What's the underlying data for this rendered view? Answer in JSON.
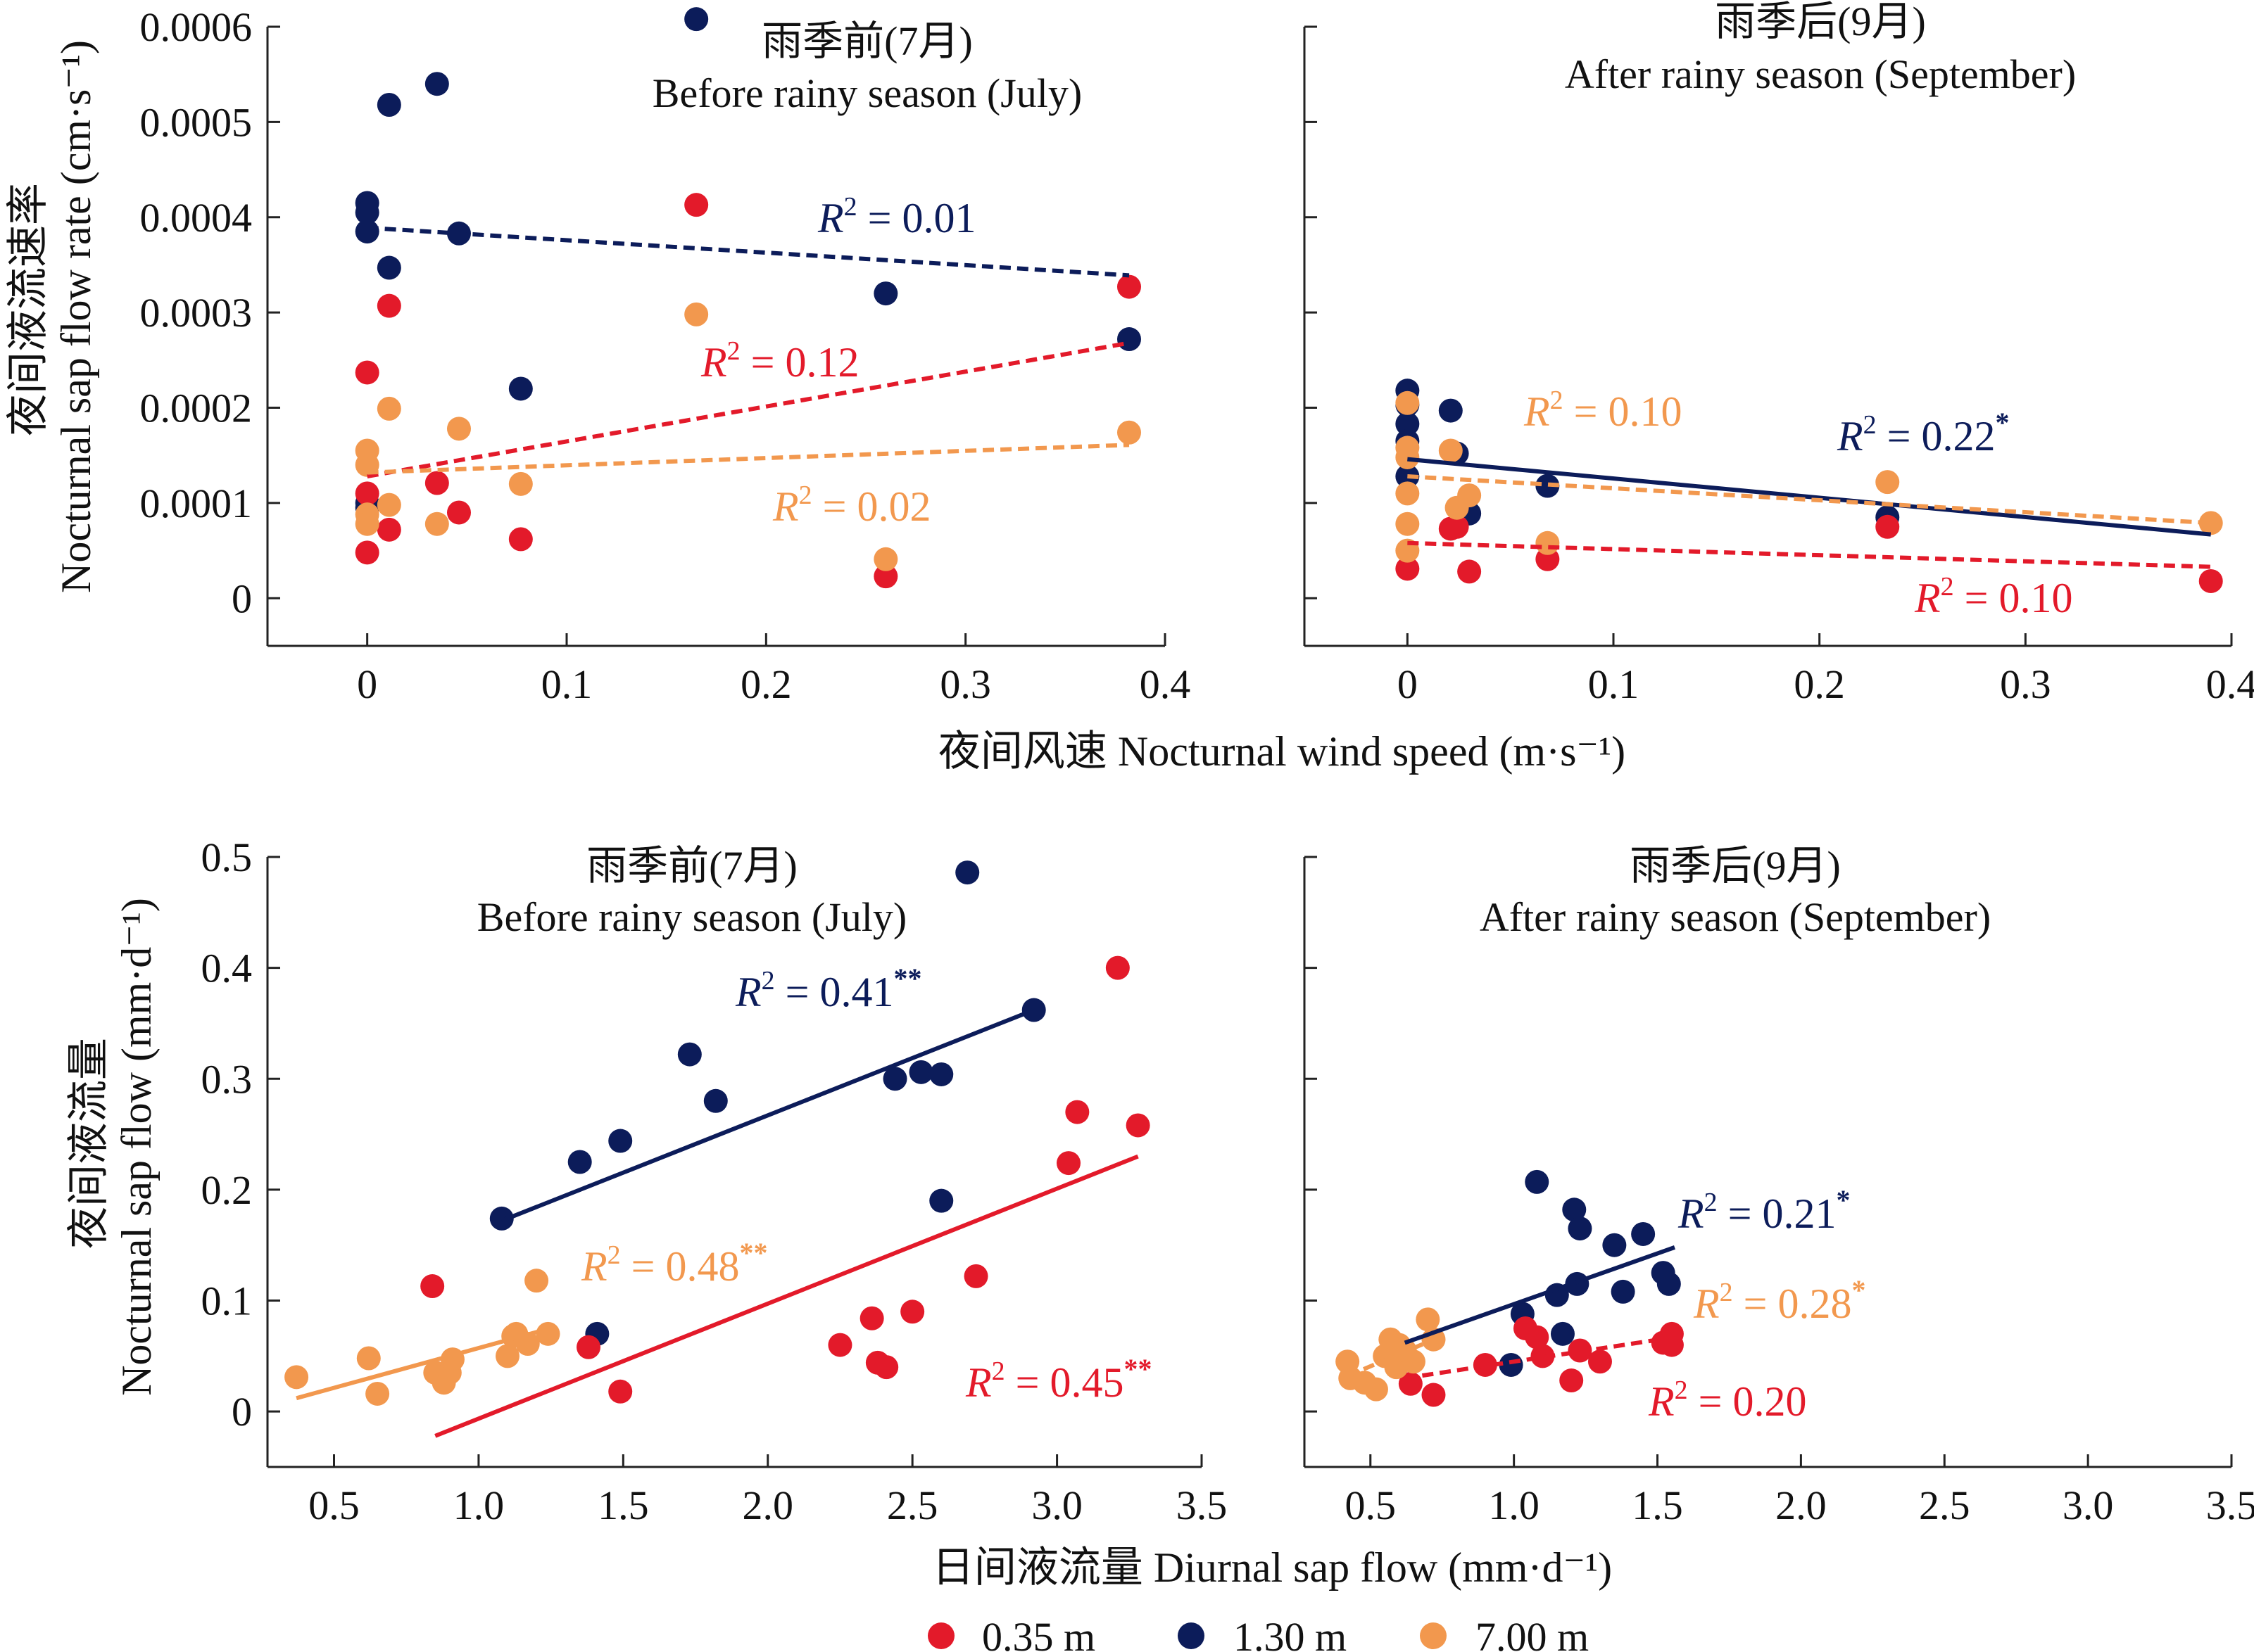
{
  "colors": {
    "0.35m": "#e31a2a",
    "1.30m": "#0c1c5a",
    "7.00m": "#f2984e",
    "axis": "#222222"
  },
  "legend": [
    {
      "key": "0.35m",
      "label": "0.35 m"
    },
    {
      "key": "1.30m",
      "label": "1.30 m"
    },
    {
      "key": "7.00m",
      "label": "7.00 m"
    }
  ],
  "top_row": {
    "ylabel_cn": "夜间液流速率",
    "ylabel_en": "Nocturnal sap flow rate (cm·s⁻¹)",
    "xlabel": "夜间风速 Nocturnal wind speed (m·s⁻¹)"
  },
  "bottom_row": {
    "ylabel_cn": "夜间液流量",
    "ylabel_en": "Nocturnal sap flow (mm·d⁻¹)",
    "xlabel": "日间液流量 Diurnal sap flow (mm·d⁻¹)"
  },
  "chart_data": [
    {
      "type": "scatter",
      "id": "top-left",
      "title_cn": "雨季前(7月)",
      "title_en": "Before rainy season (July)",
      "xlim": [
        -0.05,
        0.4
      ],
      "ylim": [
        -5e-05,
        0.0006
      ],
      "xticks": [
        0,
        0.1,
        0.2,
        0.3,
        0.4
      ],
      "xtick_labels": [
        "0",
        "0.1",
        "0.2",
        "0.3",
        "0.4"
      ],
      "yticks": [
        0,
        0.0001,
        0.0002,
        0.0003,
        0.0004,
        0.0005,
        0.0006
      ],
      "ytick_labels": [
        "0",
        "0.0001",
        "0.0002",
        "0.0003",
        "0.0004",
        "0.0005",
        "0.0006"
      ],
      "show_ytick_labels": true,
      "series": [
        {
          "key": "1.30m",
          "points": [
            [
              0,
              0.000415
            ],
            [
              0,
              0.000405
            ],
            [
              0,
              0.000385
            ],
            [
              0,
              0.0001
            ],
            [
              0,
              9.5e-05
            ],
            [
              0.011,
              0.000518
            ],
            [
              0.011,
              0.000347
            ],
            [
              0.035,
              0.00054
            ],
            [
              0.046,
              0.000383
            ],
            [
              0.077,
              0.00022
            ],
            [
              0.165,
              0.000608
            ],
            [
              0.26,
              0.00032
            ],
            [
              0.382,
              0.000272
            ]
          ],
          "fit": {
            "x": [
              0,
              0.382
            ],
            "y": [
              0.000389,
              0.000339
            ],
            "style": "dashed",
            "r2": "0.01",
            "stars": ""
          }
        },
        {
          "key": "0.35m",
          "points": [
            [
              0,
              0.000237
            ],
            [
              0,
              0.00011
            ],
            [
              0,
              4.8e-05
            ],
            [
              0.011,
              0.000307
            ],
            [
              0.011,
              7.2e-05
            ],
            [
              0.035,
              0.000121
            ],
            [
              0.046,
              9e-05
            ],
            [
              0.077,
              6.2e-05
            ],
            [
              0.165,
              0.000413
            ],
            [
              0.26,
              2.3e-05
            ],
            [
              0.382,
              0.000327
            ]
          ],
          "fit": {
            "x": [
              0,
              0.382
            ],
            "y": [
              0.000128,
              0.000268
            ],
            "style": "dashed",
            "r2": "0.12",
            "stars": ""
          }
        },
        {
          "key": "7.00m",
          "points": [
            [
              0,
              0.000155
            ],
            [
              0,
              0.00014
            ],
            [
              0,
              8.8e-05
            ],
            [
              0,
              7.8e-05
            ],
            [
              0.011,
              0.000199
            ],
            [
              0.011,
              9.8e-05
            ],
            [
              0.035,
              7.8e-05
            ],
            [
              0.046,
              0.000178
            ],
            [
              0.077,
              0.00012
            ],
            [
              0.165,
              0.000298
            ],
            [
              0.26,
              4.1e-05
            ],
            [
              0.382,
              0.000174
            ]
          ],
          "fit": {
            "x": [
              0,
              0.382
            ],
            "y": [
              0.000132,
              0.000161
            ],
            "style": "dashed",
            "r2": "0.02",
            "stars": ""
          }
        }
      ]
    },
    {
      "type": "scatter",
      "id": "top-right",
      "title_cn": "雨季后(9月)",
      "title_en": "After rainy season (September)",
      "xlim": [
        -0.05,
        0.4
      ],
      "ylim": [
        -5e-05,
        0.0006
      ],
      "xticks": [
        0,
        0.1,
        0.2,
        0.3,
        0.4
      ],
      "xtick_labels": [
        "0",
        "0.1",
        "0.2",
        "0.3",
        "0.4"
      ],
      "yticks": [
        0,
        0.0001,
        0.0002,
        0.0003,
        0.0004,
        0.0005,
        0.0006
      ],
      "show_ytick_labels": false,
      "series": [
        {
          "key": "1.30m",
          "points": [
            [
              0,
              0.000218
            ],
            [
              0,
              0.000203
            ],
            [
              0,
              0.000183
            ],
            [
              0,
              0.000165
            ],
            [
              0,
              0.000128
            ],
            [
              0.021,
              0.000197
            ],
            [
              0.024,
              0.000152
            ],
            [
              0.03,
              8.9e-05
            ],
            [
              0.068,
              0.000118
            ],
            [
              0.233,
              8.5e-05
            ]
          ],
          "fit": {
            "x": [
              0,
              0.39
            ],
            "y": [
              0.000146,
              6.7e-05
            ],
            "style": "solid",
            "r2": "0.22",
            "stars": "*"
          }
        },
        {
          "key": "0.35m",
          "points": [
            [
              0,
              3.1e-05
            ],
            [
              0.021,
              7.3e-05
            ],
            [
              0.024,
              7.5e-05
            ],
            [
              0.03,
              2.8e-05
            ],
            [
              0.068,
              4.1e-05
            ],
            [
              0.233,
              7.5e-05
            ],
            [
              0.39,
              1.8e-05
            ]
          ],
          "fit": {
            "x": [
              0,
              0.39
            ],
            "y": [
              5.8e-05,
              3.3e-05
            ],
            "style": "dashed",
            "r2": "0.10",
            "stars": ""
          }
        },
        {
          "key": "7.00m",
          "points": [
            [
              0,
              0.000205
            ],
            [
              0,
              0.000158
            ],
            [
              0,
              0.000148
            ],
            [
              0,
              0.00011
            ],
            [
              0,
              7.8e-05
            ],
            [
              0,
              5e-05
            ],
            [
              0.021,
              0.000155
            ],
            [
              0.024,
              9.5e-05
            ],
            [
              0.03,
              0.000108
            ],
            [
              0.068,
              5.8e-05
            ],
            [
              0.233,
              0.000122
            ],
            [
              0.39,
              7.9e-05
            ]
          ],
          "fit": {
            "x": [
              0,
              0.39
            ],
            "y": [
              0.000128,
              7.9e-05
            ],
            "style": "dashed",
            "r2": "0.10",
            "stars": ""
          }
        }
      ]
    },
    {
      "type": "scatter",
      "id": "bottom-left",
      "title_cn": "雨季前(7月)",
      "title_en": "Before rainy season (July)",
      "xlim": [
        0.27,
        3.5
      ],
      "ylim": [
        -0.05,
        0.5
      ],
      "xticks": [
        0.5,
        1.0,
        1.5,
        2.0,
        2.5,
        3.0,
        3.5
      ],
      "xtick_labels": [
        "0.5",
        "1.0",
        "1.5",
        "2.0",
        "2.5",
        "3.0",
        "3.5"
      ],
      "yticks": [
        0,
        0.1,
        0.2,
        0.3,
        0.4,
        0.5
      ],
      "ytick_labels": [
        "0",
        "0.1",
        "0.2",
        "0.3",
        "0.4",
        "0.5"
      ],
      "show_ytick_labels": true,
      "series": [
        {
          "key": "1.30m",
          "points": [
            [
              1.08,
              0.174
            ],
            [
              1.35,
              0.225
            ],
            [
              1.41,
              0.07
            ],
            [
              1.49,
              0.244
            ],
            [
              1.73,
              0.322
            ],
            [
              1.82,
              0.28
            ],
            [
              2.44,
              0.3
            ],
            [
              2.53,
              0.306
            ],
            [
              2.6,
              0.304
            ],
            [
              2.6,
              0.19
            ],
            [
              2.69,
              0.486
            ],
            [
              2.92,
              0.362
            ]
          ],
          "fit": {
            "x": [
              1.08,
              2.92
            ],
            "y": [
              0.172,
              0.362
            ],
            "style": "solid",
            "r2": "0.41",
            "stars": "**"
          }
        },
        {
          "key": "0.35m",
          "points": [
            [
              0.84,
              0.113
            ],
            [
              1.38,
              0.058
            ],
            [
              1.49,
              0.018
            ],
            [
              2.25,
              0.06
            ],
            [
              2.36,
              0.084
            ],
            [
              2.38,
              0.044
            ],
            [
              2.41,
              0.04
            ],
            [
              2.5,
              0.09
            ],
            [
              2.72,
              0.122
            ],
            [
              3.04,
              0.224
            ],
            [
              3.07,
              0.27
            ],
            [
              3.21,
              0.4
            ],
            [
              3.28,
              0.258
            ]
          ],
          "fit": {
            "x": [
              0.85,
              3.28
            ],
            "y": [
              -0.022,
              0.23
            ],
            "style": "solid",
            "r2": "0.45",
            "stars": "**"
          }
        },
        {
          "key": "7.00m",
          "points": [
            [
              0.37,
              0.031
            ],
            [
              0.62,
              0.048
            ],
            [
              0.65,
              0.016
            ],
            [
              0.85,
              0.035
            ],
            [
              0.88,
              0.026
            ],
            [
              0.9,
              0.035
            ],
            [
              0.91,
              0.047
            ],
            [
              1.1,
              0.05
            ],
            [
              1.12,
              0.068
            ],
            [
              1.13,
              0.07
            ],
            [
              1.17,
              0.061
            ],
            [
              1.2,
              0.118
            ],
            [
              1.24,
              0.07
            ]
          ],
          "fit": {
            "x": [
              0.37,
              1.22
            ],
            "y": [
              0.012,
              0.073
            ],
            "style": "solid",
            "r2": "0.48",
            "stars": "**"
          }
        }
      ]
    },
    {
      "type": "scatter",
      "id": "bottom-right",
      "title_cn": "雨季后(9月)",
      "title_en": "After rainy season (September)",
      "xlim": [
        0.27,
        3.5
      ],
      "ylim": [
        -0.05,
        0.5
      ],
      "xticks": [
        0.5,
        1.0,
        1.5,
        2.0,
        2.5,
        3.0,
        3.5
      ],
      "xtick_labels": [
        "0.5",
        "1.0",
        "1.5",
        "2.0",
        "2.5",
        "3.0",
        "3.5"
      ],
      "yticks": [
        0,
        0.1,
        0.2,
        0.3,
        0.4,
        0.5
      ],
      "show_ytick_labels": false,
      "series": [
        {
          "key": "1.30m",
          "points": [
            [
              0.99,
              0.042
            ],
            [
              1.03,
              0.088
            ],
            [
              1.08,
              0.207
            ],
            [
              1.15,
              0.105
            ],
            [
              1.17,
              0.07
            ],
            [
              1.21,
              0.182
            ],
            [
              1.22,
              0.115
            ],
            [
              1.23,
              0.165
            ],
            [
              1.35,
              0.15
            ],
            [
              1.38,
              0.108
            ],
            [
              1.45,
              0.16
            ],
            [
              1.52,
              0.125
            ],
            [
              1.54,
              0.115
            ]
          ],
          "fit": {
            "x": [
              0.62,
              1.56
            ],
            "y": [
              0.062,
              0.148
            ],
            "style": "solid",
            "r2": "0.21",
            "stars": "*"
          }
        },
        {
          "key": "0.35m",
          "points": [
            [
              0.64,
              0.025
            ],
            [
              0.72,
              0.015
            ],
            [
              0.9,
              0.042
            ],
            [
              1.04,
              0.075
            ],
            [
              1.08,
              0.067
            ],
            [
              1.1,
              0.05
            ],
            [
              1.2,
              0.028
            ],
            [
              1.23,
              0.055
            ],
            [
              1.3,
              0.045
            ],
            [
              1.52,
              0.062
            ],
            [
              1.55,
              0.06
            ],
            [
              1.55,
              0.07
            ]
          ],
          "fit": {
            "x": [
              0.62,
              1.56
            ],
            "y": [
              0.03,
              0.067
            ],
            "style": "dashed",
            "r2": "0.20",
            "stars": ""
          }
        },
        {
          "key": "7.00m",
          "points": [
            [
              0.42,
              0.045
            ],
            [
              0.43,
              0.03
            ],
            [
              0.48,
              0.026
            ],
            [
              0.52,
              0.02
            ],
            [
              0.55,
              0.05
            ],
            [
              0.57,
              0.065
            ],
            [
              0.59,
              0.04
            ],
            [
              0.6,
              0.06
            ],
            [
              0.62,
              0.055
            ],
            [
              0.65,
              0.045
            ],
            [
              0.7,
              0.083
            ],
            [
              0.72,
              0.065
            ]
          ],
          "fit": {
            "x": [
              0.42,
              0.74
            ],
            "y": [
              0.032,
              0.067
            ],
            "style": "dashed",
            "r2": "0.28",
            "stars": "*"
          }
        }
      ]
    }
  ]
}
